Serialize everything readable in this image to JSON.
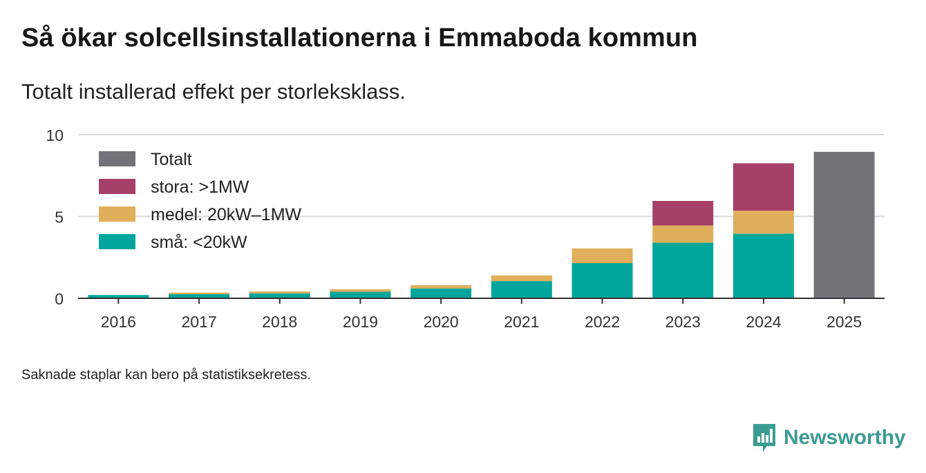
{
  "title": "Så ökar solcellsinstallationerna i Emmaboda kommun",
  "subtitle": "Totalt installerad effekt per storleksklass.",
  "note": "Saknade staplar kan bero på statistiksekretess.",
  "brand": {
    "name": "Newsworthy",
    "icon": "newsworthy-logo-icon",
    "color": "#3a9b93"
  },
  "chart_data": {
    "type": "bar",
    "stacked": true,
    "title": "Så ökar solcellsinstallationerna i Emmaboda kommun",
    "xlabel": "",
    "ylabel": "",
    "ylim": [
      0,
      10
    ],
    "yticks": [
      0,
      5,
      10
    ],
    "grid": true,
    "legend_position": "top-left",
    "categories": [
      "2016",
      "2017",
      "2018",
      "2019",
      "2020",
      "2021",
      "2022",
      "2023",
      "2024",
      "2025"
    ],
    "series": [
      {
        "name": "små: <20kW",
        "color": "#00a69c",
        "values": [
          0.2,
          0.25,
          0.3,
          0.4,
          0.6,
          1.05,
          2.15,
          3.4,
          3.95,
          null
        ]
      },
      {
        "name": "medel: 20kW–1MW",
        "color": "#e0af5b",
        "values": [
          0.0,
          0.1,
          0.12,
          0.15,
          0.2,
          0.35,
          0.9,
          1.05,
          1.4,
          null
        ]
      },
      {
        "name": "stora: >1MW",
        "color": "#a64068",
        "values": [
          null,
          null,
          null,
          null,
          null,
          null,
          null,
          1.5,
          2.9,
          null
        ]
      },
      {
        "name": "Totalt",
        "color": "#737278",
        "values": [
          null,
          null,
          null,
          null,
          null,
          null,
          null,
          null,
          null,
          8.95
        ]
      }
    ],
    "legend_order": [
      "Totalt",
      "stora: >1MW",
      "medel: 20kW–1MW",
      "små: <20kW"
    ]
  }
}
